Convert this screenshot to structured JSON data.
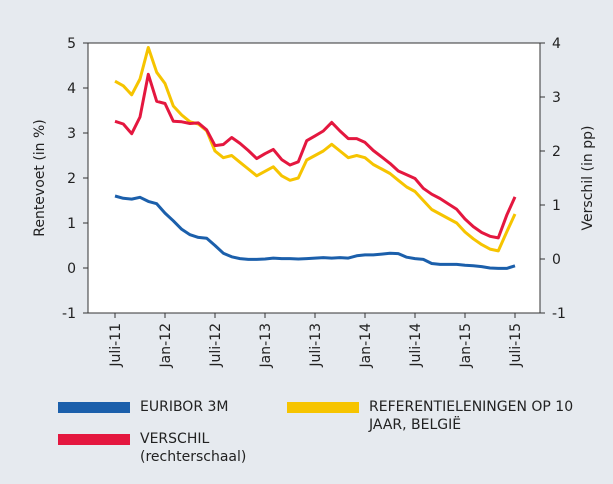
{
  "chart_data": {
    "type": "line",
    "y_label": "Rentevoet (in %)",
    "y2_label": "Verschil (in pp)",
    "categories": [
      "Juli-11",
      null,
      null,
      null,
      null,
      null,
      "Jan-12",
      null,
      null,
      null,
      null,
      null,
      "Juli-12",
      null,
      null,
      null,
      null,
      null,
      "Jan-13",
      null,
      null,
      null,
      null,
      null,
      "Juli-13",
      null,
      null,
      null,
      null,
      null,
      "Jan-14",
      null,
      null,
      null,
      null,
      null,
      "Juli-14",
      null,
      null,
      null,
      null,
      null,
      "Jan-15",
      null,
      null,
      null,
      null,
      null,
      "Juli-15"
    ],
    "ylim": [
      -1,
      5
    ],
    "yticks": [
      -1,
      0,
      1,
      2,
      3,
      4,
      5
    ],
    "y2lim": [
      -1,
      4
    ],
    "y2ticks": [
      -1,
      0,
      1,
      2,
      3,
      4
    ],
    "series": [
      {
        "name": "EURIBOR 3M",
        "color": "#1b5fab",
        "values": [
          1.6,
          1.55,
          1.53,
          1.57,
          1.48,
          1.43,
          1.22,
          1.05,
          0.86,
          0.74,
          0.68,
          0.66,
          0.5,
          0.33,
          0.25,
          0.21,
          0.19,
          0.19,
          0.2,
          0.22,
          0.21,
          0.21,
          0.2,
          0.21,
          0.22,
          0.23,
          0.22,
          0.23,
          0.22,
          0.27,
          0.29,
          0.29,
          0.31,
          0.33,
          0.32,
          0.24,
          0.21,
          0.19,
          0.1,
          0.08,
          0.08,
          0.08,
          0.06,
          0.05,
          0.03,
          0.0,
          -0.01,
          -0.01,
          0.05
        ]
      },
      {
        "name": "REFERENTIELENINGEN OP 10 JAAR, BELGIË",
        "color": "#f6c400",
        "values": [
          4.15,
          4.05,
          3.85,
          4.2,
          4.9,
          4.35,
          4.1,
          3.6,
          3.4,
          3.25,
          3.2,
          3.05,
          2.6,
          2.45,
          2.5,
          2.35,
          2.2,
          2.05,
          2.15,
          2.25,
          2.05,
          1.95,
          2.0,
          2.4,
          2.5,
          2.6,
          2.75,
          2.6,
          2.45,
          2.5,
          2.45,
          2.3,
          2.2,
          2.1,
          1.95,
          1.8,
          1.7,
          1.5,
          1.3,
          1.2,
          1.1,
          1.0,
          0.8,
          0.65,
          0.52,
          0.42,
          0.38,
          0.8,
          1.2
        ]
      },
      {
        "name": "VERSCHIL (rechterschaal)",
        "color": "#e4173f",
        "axis": "y2",
        "values": [
          2.55,
          2.5,
          2.32,
          2.63,
          3.42,
          2.92,
          2.88,
          2.55,
          2.54,
          2.51,
          2.52,
          2.39,
          2.1,
          2.12,
          2.25,
          2.14,
          2.01,
          1.86,
          1.95,
          2.03,
          1.84,
          1.74,
          1.8,
          2.19,
          2.28,
          2.37,
          2.53,
          2.37,
          2.23,
          2.23,
          2.16,
          2.01,
          1.89,
          1.77,
          1.63,
          1.56,
          1.49,
          1.31,
          1.2,
          1.12,
          1.02,
          0.92,
          0.74,
          0.6,
          0.49,
          0.42,
          0.39,
          0.81,
          1.15
        ]
      }
    ]
  }
}
